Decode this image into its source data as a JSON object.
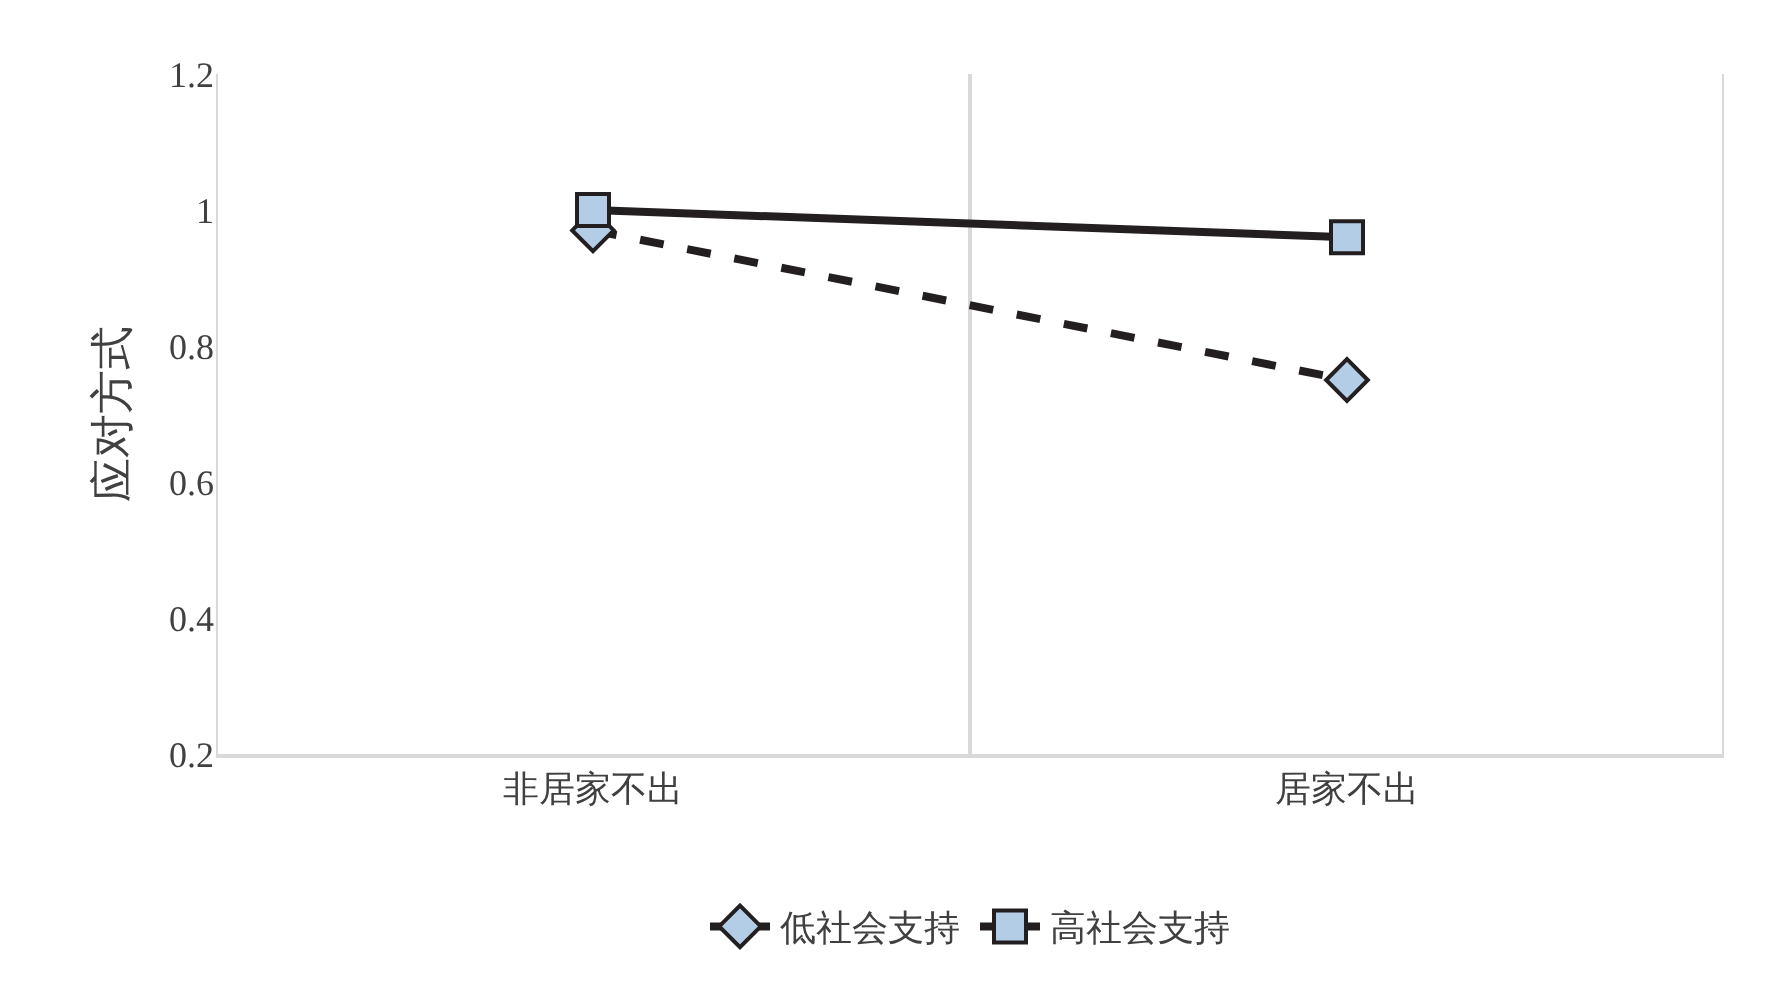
{
  "chart_data": {
    "type": "line",
    "ylabel": "应对方式",
    "categories": [
      "非居家不出",
      "居家不出"
    ],
    "series": [
      {
        "name": "低社会支持",
        "color": "#231f20",
        "values": [
          0.97,
          0.75
        ],
        "marker": "diamond",
        "line_style": "dashed"
      },
      {
        "name": "高社会支持",
        "color": "#231f20",
        "values": [
          1.0,
          0.96
        ],
        "marker": "square",
        "line_style": "solid"
      }
    ],
    "ylim": [
      0.2,
      1.2
    ],
    "yticks": [
      0.2,
      0.4,
      0.6,
      0.8,
      1,
      1.2
    ],
    "grid": "x",
    "legend": "bottom"
  }
}
